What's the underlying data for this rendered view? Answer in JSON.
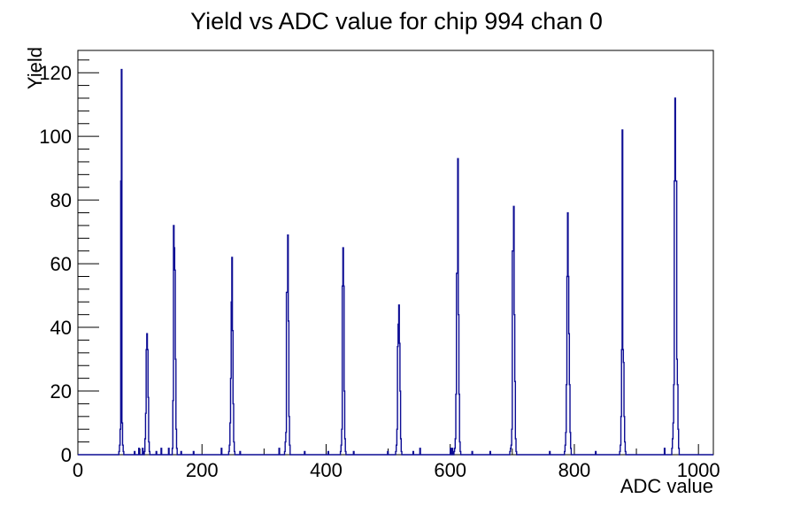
{
  "window": {
    "title": "Yield vs ADC value for chip 994 chan 0"
  },
  "chart_data": {
    "type": "histogram",
    "title": "Yield vs ADC value for chip 994 chan 0",
    "xlabel": "ADC value",
    "ylabel": "Yield",
    "xlim": [
      0,
      1024
    ],
    "ylim": [
      0,
      127
    ],
    "x_major_ticks": [
      0,
      200,
      400,
      600,
      800,
      1000
    ],
    "x_minor_step": 100,
    "y_major_ticks": [
      0,
      20,
      40,
      60,
      80,
      100,
      120
    ],
    "y_minor_step": 4,
    "grid": false,
    "legend": false,
    "line_color": "#0c0c94",
    "frame_color": "#000000",
    "background_color": "#ffffff",
    "peak_centers_adc": [
      70,
      111,
      155,
      248,
      338,
      428,
      517,
      612,
      702,
      790,
      878,
      963
    ],
    "peak_max_yields": [
      121,
      38,
      72,
      62,
      69,
      65,
      47,
      93,
      78,
      76,
      102,
      112
    ],
    "bins": [
      [
        66,
        1
      ],
      [
        67,
        3
      ],
      [
        68,
        8
      ],
      [
        69,
        86
      ],
      [
        70,
        121
      ],
      [
        71,
        10
      ],
      [
        72,
        3
      ],
      [
        73,
        1
      ],
      [
        91,
        1
      ],
      [
        98,
        2
      ],
      [
        104,
        2
      ],
      [
        107,
        1
      ],
      [
        108,
        5
      ],
      [
        109,
        13
      ],
      [
        110,
        33
      ],
      [
        111,
        38
      ],
      [
        112,
        33
      ],
      [
        113,
        18
      ],
      [
        114,
        4
      ],
      [
        115,
        1
      ],
      [
        126,
        1
      ],
      [
        134,
        2
      ],
      [
        146,
        2
      ],
      [
        152,
        2
      ],
      [
        153,
        17
      ],
      [
        154,
        72
      ],
      [
        155,
        65
      ],
      [
        156,
        58
      ],
      [
        157,
        30
      ],
      [
        158,
        8
      ],
      [
        159,
        2
      ],
      [
        166,
        1
      ],
      [
        186,
        1
      ],
      [
        231,
        2
      ],
      [
        243,
        1
      ],
      [
        244,
        3
      ],
      [
        245,
        10
      ],
      [
        246,
        24
      ],
      [
        247,
        48
      ],
      [
        248,
        62
      ],
      [
        249,
        39
      ],
      [
        250,
        16
      ],
      [
        251,
        4
      ],
      [
        252,
        1
      ],
      [
        261,
        1
      ],
      [
        324,
        2
      ],
      [
        333,
        1
      ],
      [
        334,
        4
      ],
      [
        335,
        7
      ],
      [
        336,
        51
      ],
      [
        337,
        51
      ],
      [
        338,
        69
      ],
      [
        339,
        42
      ],
      [
        340,
        12
      ],
      [
        341,
        3
      ],
      [
        365,
        1
      ],
      [
        403,
        1
      ],
      [
        423,
        1
      ],
      [
        424,
        3
      ],
      [
        425,
        8
      ],
      [
        426,
        53
      ],
      [
        427,
        65
      ],
      [
        428,
        53
      ],
      [
        429,
        20
      ],
      [
        430,
        5
      ],
      [
        431,
        1
      ],
      [
        444,
        1
      ],
      [
        499,
        1
      ],
      [
        512,
        1
      ],
      [
        513,
        3
      ],
      [
        514,
        8
      ],
      [
        515,
        34
      ],
      [
        516,
        41
      ],
      [
        517,
        47
      ],
      [
        518,
        35
      ],
      [
        519,
        20
      ],
      [
        520,
        5
      ],
      [
        521,
        1
      ],
      [
        540,
        1
      ],
      [
        551,
        2
      ],
      [
        600,
        2
      ],
      [
        603,
        2
      ],
      [
        606,
        1
      ],
      [
        607,
        2
      ],
      [
        608,
        5
      ],
      [
        609,
        19
      ],
      [
        610,
        57
      ],
      [
        611,
        57
      ],
      [
        612,
        93
      ],
      [
        613,
        44
      ],
      [
        614,
        19
      ],
      [
        615,
        4
      ],
      [
        616,
        1
      ],
      [
        635,
        1
      ],
      [
        664,
        1
      ],
      [
        696,
        1
      ],
      [
        697,
        2
      ],
      [
        698,
        3
      ],
      [
        699,
        8
      ],
      [
        700,
        64
      ],
      [
        701,
        64
      ],
      [
        702,
        78
      ],
      [
        703,
        44
      ],
      [
        704,
        23
      ],
      [
        705,
        5
      ],
      [
        706,
        1
      ],
      [
        760,
        1
      ],
      [
        784,
        1
      ],
      [
        785,
        3
      ],
      [
        786,
        7
      ],
      [
        787,
        22
      ],
      [
        788,
        56
      ],
      [
        789,
        76
      ],
      [
        790,
        56
      ],
      [
        791,
        38
      ],
      [
        792,
        22
      ],
      [
        793,
        7
      ],
      [
        794,
        2
      ],
      [
        834,
        1
      ],
      [
        873,
        1
      ],
      [
        874,
        3
      ],
      [
        875,
        12
      ],
      [
        876,
        33
      ],
      [
        877,
        102
      ],
      [
        878,
        33
      ],
      [
        879,
        29
      ],
      [
        880,
        12
      ],
      [
        881,
        4
      ],
      [
        882,
        1
      ],
      [
        945,
        2
      ],
      [
        957,
        2
      ],
      [
        958,
        5
      ],
      [
        959,
        10
      ],
      [
        960,
        22
      ],
      [
        961,
        86
      ],
      [
        962,
        112
      ],
      [
        963,
        86
      ],
      [
        964,
        86
      ],
      [
        965,
        30
      ],
      [
        966,
        22
      ],
      [
        967,
        8
      ],
      [
        968,
        2
      ]
    ]
  }
}
